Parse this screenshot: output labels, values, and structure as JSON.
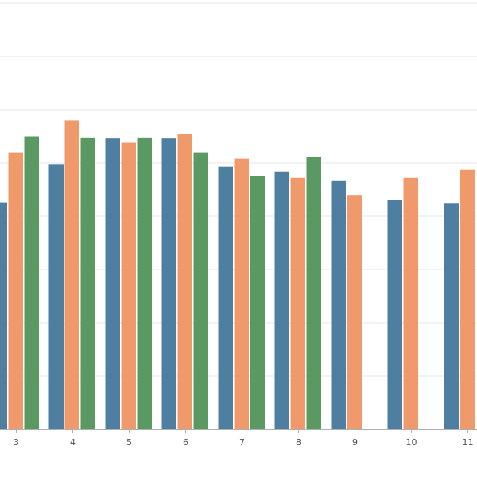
{
  "chart_data": {
    "type": "bar",
    "title": "",
    "xlabel": "",
    "ylabel": "",
    "categories": [
      "3",
      "4",
      "5",
      "6",
      "7",
      "8",
      "9",
      "10",
      "11"
    ],
    "ylim": [
      0,
      8
    ],
    "grid": true,
    "series": [
      {
        "color": "#4e7fa1",
        "values": [
          4.26,
          4.98,
          5.46,
          5.46,
          4.93,
          4.84,
          4.66,
          4.3,
          4.25
        ]
      },
      {
        "color": "#f09a6c",
        "values": [
          5.2,
          5.8,
          5.38,
          5.55,
          5.08,
          4.72,
          4.4,
          4.72,
          4.87
        ]
      },
      {
        "color": "#5a9a62",
        "values": [
          5.5,
          5.48,
          5.48,
          5.2,
          4.76,
          5.12,
          null,
          null,
          null
        ]
      }
    ]
  }
}
